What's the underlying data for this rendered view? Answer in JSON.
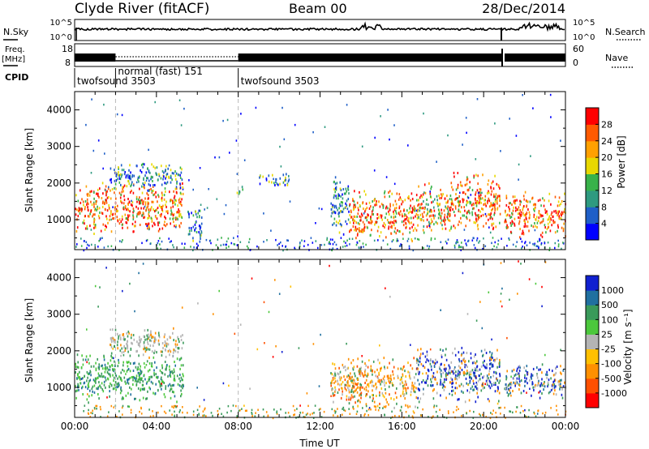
{
  "header": {
    "station": "Clyde River (fitACF)",
    "beam": "Beam 00",
    "date": "28/Dec/2014"
  },
  "status_panel": {
    "nsky_label": "N.Sky",
    "nsky_ticks": [
      "10^5",
      "10^0"
    ],
    "nsearch_label": "N.Search",
    "nsearch_ticks": [
      "10^5",
      "10^0"
    ],
    "freq_label_top": "Freq.",
    "freq_label_unit": "[MHz]",
    "freq_ticks": [
      "18",
      "8"
    ],
    "nave_label": "Nave",
    "nave_ticks": [
      "60",
      "0"
    ],
    "cpid_label": "CPID",
    "cpid_segments": [
      {
        "label": "twofsound 3503",
        "start_h": 0,
        "end_h": 2
      },
      {
        "label": "normal (fast) 151",
        "start_h": 2,
        "end_h": 8
      },
      {
        "label": "twofsound 3503",
        "start_h": 8,
        "end_h": 24
      }
    ],
    "mode_change_hours": [
      2,
      8
    ]
  },
  "chart_data": [
    {
      "type": "heatmap",
      "panel": "power",
      "xlabel": "",
      "ylabel": "Slant Range [km]",
      "xlim": [
        0,
        24
      ],
      "ylim": [
        180,
        4500
      ],
      "y_ticks": [
        1000,
        2000,
        3000,
        4000
      ],
      "colorbar": {
        "label": "Power [dB]",
        "ticks": [
          "28",
          "24",
          "20",
          "16",
          "12",
          "8",
          "4"
        ],
        "colors": [
          "#0000ff",
          "#1f5fc8",
          "#2e9a80",
          "#38b24a",
          "#e8d800",
          "#ffa000",
          "#ff5a00",
          "#ff0000"
        ]
      },
      "scatter_regions": [
        {
          "t0": 0.0,
          "t1": 5.3,
          "r0": 600,
          "r1": 2100,
          "level": "high"
        },
        {
          "t0": 1.7,
          "t1": 5.3,
          "r0": 1800,
          "r1": 2600,
          "level": "low"
        },
        {
          "t0": 5.5,
          "t1": 6.2,
          "r0": 200,
          "r1": 1400,
          "level": "low"
        },
        {
          "t0": 7.9,
          "t1": 8.2,
          "r0": 1600,
          "r1": 2000,
          "level": "low"
        },
        {
          "t0": 9.0,
          "t1": 10.5,
          "r0": 1900,
          "r1": 2300,
          "level": "low"
        },
        {
          "t0": 12.5,
          "t1": 13.4,
          "r0": 500,
          "r1": 2300,
          "level": "low"
        },
        {
          "t0": 13.4,
          "t1": 16.7,
          "r0": 400,
          "r1": 1900,
          "level": "high"
        },
        {
          "t0": 16.7,
          "t1": 18.3,
          "r0": 500,
          "r1": 2100,
          "level": "mid"
        },
        {
          "t0": 18.3,
          "t1": 20.8,
          "r0": 600,
          "r1": 2400,
          "level": "high"
        },
        {
          "t0": 21.0,
          "t1": 24.0,
          "r0": 500,
          "r1": 1800,
          "level": "high"
        }
      ]
    },
    {
      "type": "heatmap",
      "panel": "velocity",
      "xlabel": "Time UT",
      "ylabel": "Slant Range [km]",
      "xlim": [
        0,
        24
      ],
      "ylim": [
        180,
        4500
      ],
      "x_ticks": [
        "00:00",
        "04:00",
        "08:00",
        "12:00",
        "16:00",
        "20:00",
        "00:00"
      ],
      "y_ticks": [
        1000,
        2000,
        3000,
        4000
      ],
      "colorbar": {
        "label": "Velocity [m s⁻¹]",
        "ticks": [
          "1000",
          "500",
          "100",
          "25",
          "-25",
          "-100",
          "-500",
          "-1000"
        ],
        "colors": [
          "#ff0000",
          "#ff5000",
          "#ff9000",
          "#ffc000",
          "#b4b4b4",
          "#4cc83c",
          "#3a9a5a",
          "#2070a0",
          "#1020d0"
        ]
      },
      "scatter_regions": [
        {
          "t0": 0.0,
          "t1": 5.3,
          "r0": 600,
          "r1": 2000,
          "level": "green"
        },
        {
          "t0": 1.7,
          "t1": 5.3,
          "r0": 1800,
          "r1": 2700,
          "level": "grey"
        },
        {
          "t0": 12.5,
          "t1": 16.7,
          "r0": 400,
          "r1": 1900,
          "level": "orange"
        },
        {
          "t0": 16.7,
          "t1": 20.8,
          "r0": 600,
          "r1": 2200,
          "level": "blue"
        },
        {
          "t0": 21.0,
          "t1": 24.0,
          "r0": 700,
          "r1": 1700,
          "level": "blue"
        }
      ]
    }
  ]
}
